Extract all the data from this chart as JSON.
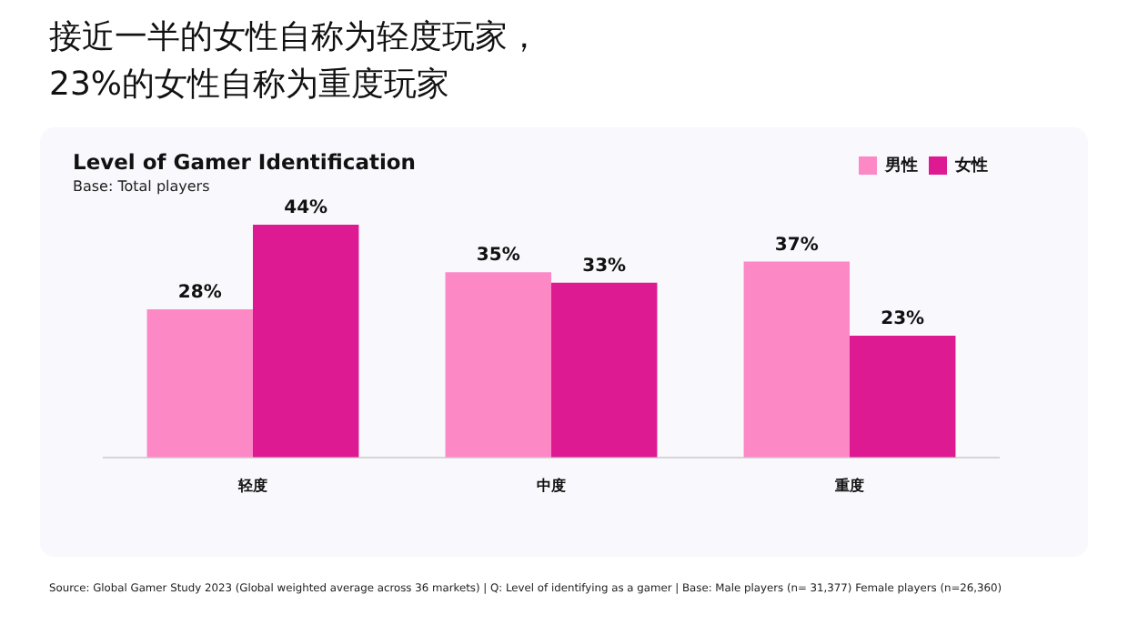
{
  "chart_data": {
    "type": "bar",
    "title": "接近一半的女性自称为轻度玩家，\n23%的女性自称为重度玩家",
    "subtitle": "Level of Gamer Identification",
    "annotations": [
      "Base: Total players",
      "Source: Global Gamer Study 2023 (Global weighted average across 36 markets)  |  Q: Level of identifying as a gamer  |  Base: Male players (n= 31,377) Female players (n=26,360)"
    ],
    "categories": [
      "轻度",
      "中度",
      "重度"
    ],
    "series": [
      {
        "name": "男性",
        "color": "#fc88c6",
        "values": [
          28,
          35,
          37
        ],
        "value_labels": [
          "28%",
          "35%",
          "37%"
        ]
      },
      {
        "name": "女性",
        "color": "#de1a92",
        "values": [
          44,
          33,
          23
        ],
        "value_labels": [
          "44%",
          "33%",
          "23%"
        ]
      }
    ],
    "legend": "top right",
    "grid": false
  }
}
